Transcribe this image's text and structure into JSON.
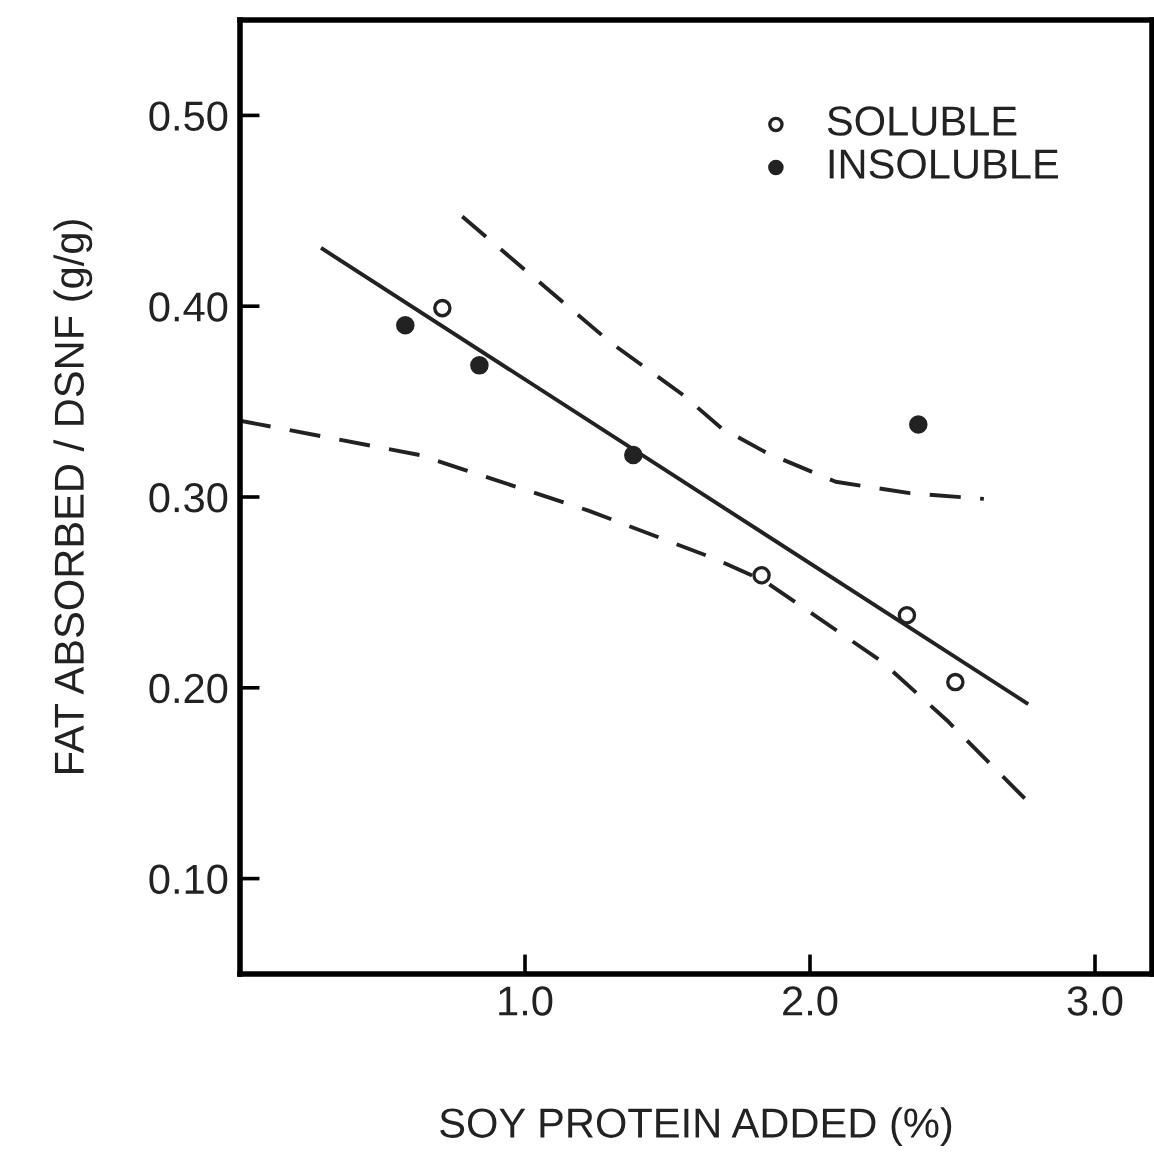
{
  "chart_data": {
    "type": "scatter",
    "xlabel": "SOY PROTEIN ADDED (%)",
    "ylabel": "FAT ABSORBED / DSNF (g/g)",
    "xlim": [
      0,
      3.2
    ],
    "ylim": [
      0.05,
      0.55
    ],
    "xticks": [
      {
        "value": 1,
        "label": "1.0"
      },
      {
        "value": 2,
        "label": "2.0"
      },
      {
        "value": 3,
        "label": "3.0"
      }
    ],
    "yticks": [
      {
        "value": 0.1,
        "label": "0.10"
      },
      {
        "value": 0.2,
        "label": "0.20"
      },
      {
        "value": 0.3,
        "label": "0.30"
      },
      {
        "value": 0.4,
        "label": "0.40"
      },
      {
        "value": 0.5,
        "label": "0.50"
      }
    ],
    "grid": false,
    "legend": "top right",
    "series": [
      {
        "name": "SOLUBLE",
        "marker": "circle",
        "color": "#ffffff",
        "x": [
          0.71,
          1.83,
          2.34,
          2.51
        ],
        "values": [
          0.399,
          0.259,
          0.238,
          0.203
        ]
      },
      {
        "name": "INSOLUBLE",
        "marker": "circle",
        "color": "#222222",
        "x": [
          0.58,
          0.84,
          1.38,
          2.38
        ],
        "values": [
          0.39,
          0.369,
          0.322,
          0.338
        ]
      },
      {
        "type": "line",
        "line_style": "solid",
        "color": "#222222",
        "x": [
          0.29,
          2.76
        ],
        "values": [
          0.43,
          0.192
        ]
      },
      {
        "type": "line",
        "line_style": "dashed",
        "color": "#222222",
        "x": [
          0.78,
          1.0,
          1.3,
          1.55,
          1.69,
          1.85,
          2.09,
          2.35,
          2.61
        ],
        "values": [
          0.447,
          0.419,
          0.381,
          0.354,
          0.336,
          0.323,
          0.308,
          0.302,
          0.299
        ]
      },
      {
        "type": "line",
        "line_style": "dashed",
        "color": "#222222",
        "x": [
          0,
          0.63,
          1.22,
          1.66,
          1.84,
          2.25,
          2.48,
          2.76
        ],
        "values": [
          0.34,
          0.322,
          0.293,
          0.268,
          0.256,
          0.214,
          0.183,
          0.141
        ]
      }
    ]
  }
}
